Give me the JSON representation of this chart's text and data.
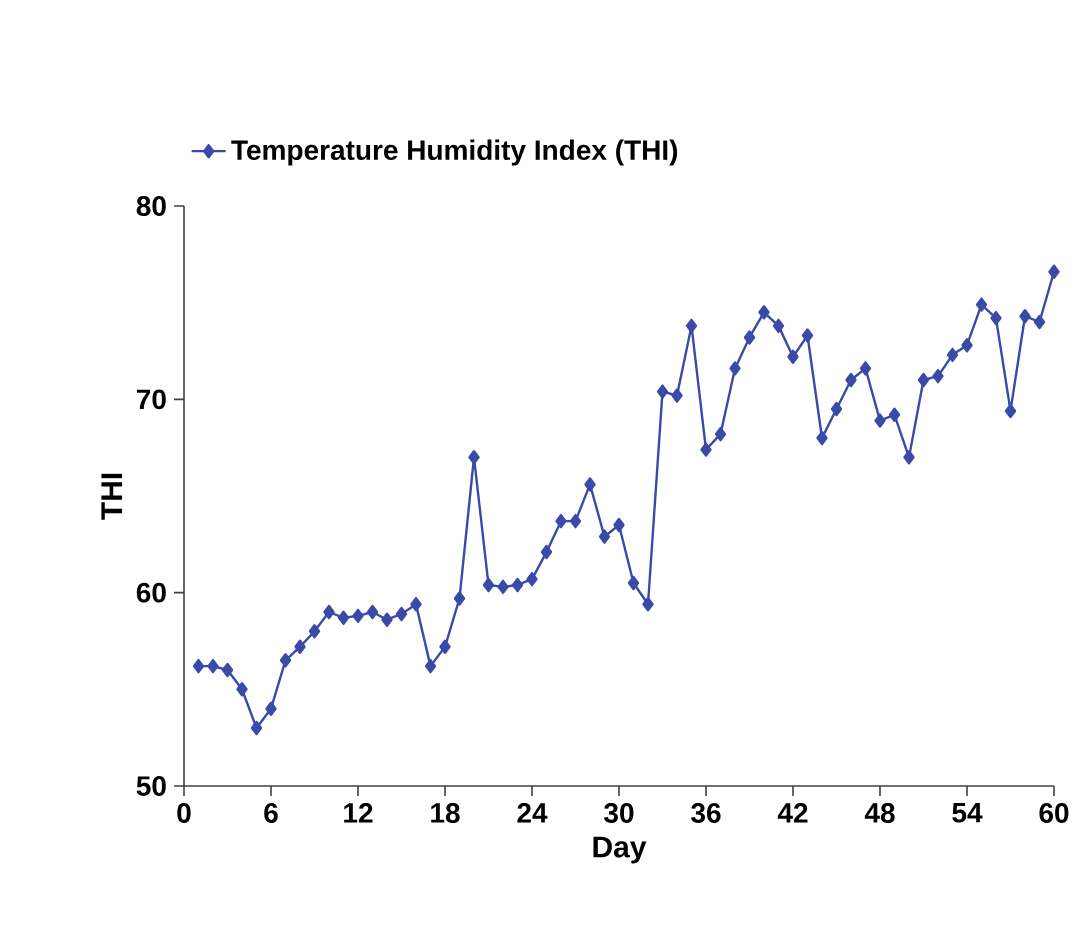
{
  "chart_data": {
    "type": "line",
    "xlabel": "Day",
    "ylabel": "THI",
    "x": [
      1,
      2,
      3,
      4,
      5,
      6,
      7,
      8,
      9,
      10,
      11,
      12,
      13,
      14,
      15,
      16,
      17,
      18,
      19,
      20,
      21,
      22,
      23,
      24,
      25,
      26,
      27,
      28,
      29,
      30,
      31,
      32,
      33,
      34,
      35,
      36,
      37,
      38,
      39,
      40,
      41,
      42,
      43,
      44,
      45,
      46,
      47,
      48,
      49,
      50,
      51,
      52,
      53,
      54,
      55,
      56,
      57,
      58,
      59,
      60
    ],
    "series": [
      {
        "name": "Temperature Humidity Index (THI)",
        "color": "#3a4aa8",
        "values": [
          56.2,
          56.2,
          56.0,
          55.0,
          53.0,
          54.0,
          56.5,
          57.2,
          58.0,
          59.0,
          58.7,
          58.8,
          59.0,
          58.6,
          58.9,
          59.4,
          56.2,
          57.2,
          59.7,
          67.0,
          60.4,
          60.3,
          60.4,
          60.7,
          62.1,
          63.7,
          63.7,
          65.6,
          62.9,
          63.5,
          60.5,
          59.4,
          70.4,
          70.2,
          73.8,
          67.4,
          68.2,
          71.6,
          73.2,
          74.5,
          73.8,
          72.2,
          73.3,
          68.0,
          69.5,
          71.0,
          71.6,
          68.9,
          69.2,
          67.0,
          71.0,
          71.2,
          72.3,
          72.8,
          74.9,
          74.2,
          69.4,
          74.3,
          74.0,
          76.6
        ]
      }
    ],
    "xlim": [
      0,
      60
    ],
    "xticks": [
      0,
      6,
      12,
      18,
      24,
      30,
      36,
      42,
      48,
      54,
      60
    ],
    "ylim": [
      50,
      80
    ],
    "yticks": [
      50,
      60,
      70,
      80
    ],
    "marker": "diamond",
    "legend": "top left",
    "grid": false
  }
}
